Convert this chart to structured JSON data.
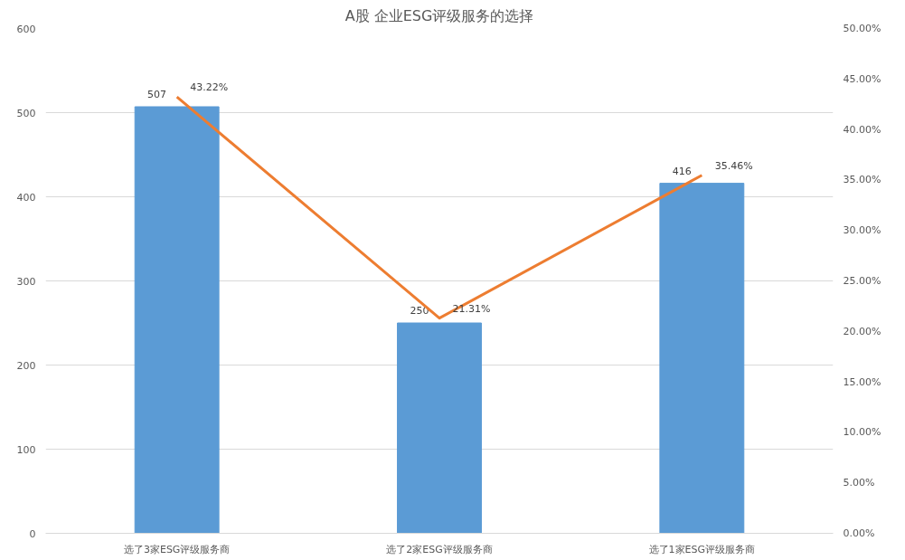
{
  "chart_data": {
    "type": "bar",
    "title": "A股 企业ESG评级服务的选择",
    "categories": [
      "选了3家ESG评级服务商",
      "选了2家ESG评级服务商",
      "选了1家ESG评级服务商"
    ],
    "series": [
      {
        "color": "#5b9bd5",
        "values": [
          507,
          250,
          416
        ],
        "value_labels": [
          "507",
          "250",
          "416"
        ]
      },
      {
        "type": "line",
        "axis": "y2",
        "color": "#ed7d31",
        "values": [
          43.22,
          21.31,
          35.46
        ],
        "value_labels": [
          "43.22%",
          "21.31%",
          "35.46%"
        ]
      }
    ],
    "ylim": [
      0,
      600
    ],
    "yticks": [
      0,
      100,
      200,
      300,
      400,
      500,
      600
    ],
    "y2lim": [
      0,
      50
    ],
    "y2ticks": [
      {
        "value": 0,
        "label": "0.00%"
      },
      {
        "value": 5,
        "label": "5.00%"
      },
      {
        "value": 10,
        "label": "10.00%"
      },
      {
        "value": 15,
        "label": "15.00%"
      },
      {
        "value": 20,
        "label": "20.00%"
      },
      {
        "value": 25,
        "label": "25.00%"
      },
      {
        "value": 30,
        "label": "30.00%"
      },
      {
        "value": 35,
        "label": "35.00%"
      },
      {
        "value": 40,
        "label": "40.00%"
      },
      {
        "value": 45,
        "label": "45.00%"
      },
      {
        "value": 50,
        "label": "50.00%"
      }
    ],
    "grid": "y",
    "line_style": "solid",
    "marker": "none"
  }
}
